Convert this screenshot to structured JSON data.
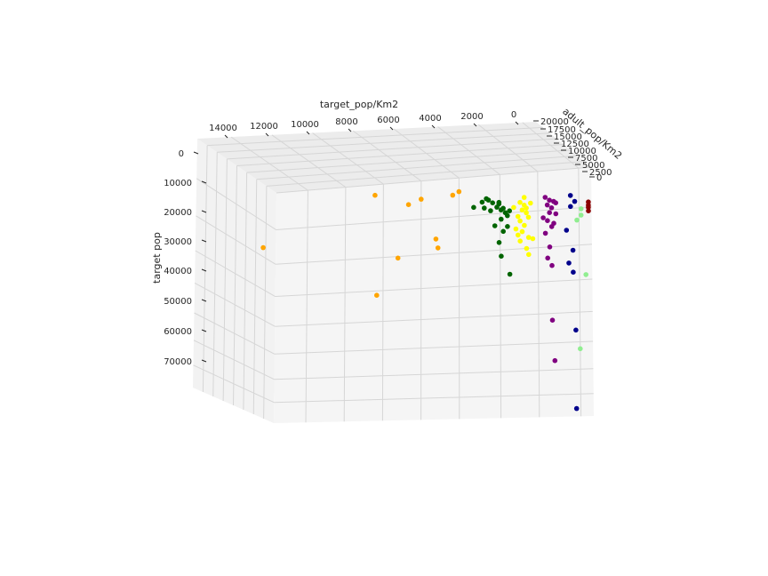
{
  "chart_data": {
    "type": "scatter",
    "projection": "3d",
    "title": "",
    "xlabel": "target_pop/Km2",
    "ylabel": "adult_pop/Km2",
    "zlabel": "target pop",
    "x_ticks": [
      "14000",
      "12000",
      "10000",
      "8000",
      "6000",
      "4000",
      "2000",
      "0"
    ],
    "y_ticks": [
      "20000",
      "17500",
      "15000",
      "12500",
      "10000",
      "7500",
      "5000",
      "2500",
      "0"
    ],
    "z_ticks": [
      "0",
      "10000",
      "20000",
      "30000",
      "40000",
      "50000",
      "60000",
      "70000"
    ],
    "grid": true,
    "clusters": [
      {
        "color": "#ffa500",
        "points": [
          {
            "x": 7500,
            "y": 3000,
            "z": 5000
          },
          {
            "x": 5900,
            "y": 3000,
            "z": 9000
          },
          {
            "x": 5300,
            "y": 3000,
            "z": 7500
          },
          {
            "x": 3800,
            "y": 3000,
            "z": 7000
          },
          {
            "x": 3500,
            "y": 3000,
            "z": 6000
          },
          {
            "x": 12800,
            "y": 3000,
            "z": 20000
          },
          {
            "x": 6400,
            "y": 3000,
            "z": 26500
          },
          {
            "x": 4600,
            "y": 3000,
            "z": 21000
          },
          {
            "x": 4500,
            "y": 3000,
            "z": 24000
          },
          {
            "x": 7400,
            "y": 3000,
            "z": 38500
          }
        ]
      },
      {
        "color": "#006400",
        "points": [
          {
            "x": 2800,
            "y": 3000,
            "z": 11500
          },
          {
            "x": 2400,
            "y": 3000,
            "z": 10000
          },
          {
            "x": 2200,
            "y": 3000,
            "z": 9000
          },
          {
            "x": 2100,
            "y": 3000,
            "z": 9500
          },
          {
            "x": 1900,
            "y": 3000,
            "z": 10500
          },
          {
            "x": 1700,
            "y": 3000,
            "z": 12000
          },
          {
            "x": 1600,
            "y": 3000,
            "z": 11000
          },
          {
            "x": 1500,
            "y": 3000,
            "z": 13000
          },
          {
            "x": 1400,
            "y": 3000,
            "z": 12500
          },
          {
            "x": 1300,
            "y": 3000,
            "z": 14000
          },
          {
            "x": 2000,
            "y": 3000,
            "z": 13000
          },
          {
            "x": 2300,
            "y": 3000,
            "z": 12000
          },
          {
            "x": 1200,
            "y": 3000,
            "z": 15000
          },
          {
            "x": 1500,
            "y": 3000,
            "z": 16000
          },
          {
            "x": 1800,
            "y": 3000,
            "z": 18000
          },
          {
            "x": 1200,
            "y": 3000,
            "z": 18500
          },
          {
            "x": 1400,
            "y": 3000,
            "z": 20000
          },
          {
            "x": 1600,
            "y": 3000,
            "z": 23500
          },
          {
            "x": 1500,
            "y": 3000,
            "z": 28000
          },
          {
            "x": 1100,
            "y": 3000,
            "z": 34000
          },
          {
            "x": 1600,
            "y": 3000,
            "z": 10500
          },
          {
            "x": 1100,
            "y": 3000,
            "z": 13500
          }
        ]
      },
      {
        "color": "#ffff00",
        "points": [
          {
            "x": 600,
            "y": 3000,
            "z": 11000
          },
          {
            "x": 400,
            "y": 3000,
            "z": 12000
          },
          {
            "x": 500,
            "y": 3000,
            "z": 13500
          },
          {
            "x": 300,
            "y": 3000,
            "z": 14500
          },
          {
            "x": 700,
            "y": 3000,
            "z": 15500
          },
          {
            "x": 200,
            "y": 3000,
            "z": 16000
          },
          {
            "x": 900,
            "y": 3000,
            "z": 12500
          },
          {
            "x": 600,
            "y": 3000,
            "z": 17000
          },
          {
            "x": 400,
            "y": 3000,
            "z": 18500
          },
          {
            "x": 800,
            "y": 3000,
            "z": 19500
          },
          {
            "x": 100,
            "y": 3000,
            "z": 11500
          },
          {
            "x": 500,
            "y": 3000,
            "z": 20500
          },
          {
            "x": 300,
            "y": 3000,
            "z": 13000
          },
          {
            "x": 700,
            "y": 3000,
            "z": 21500
          },
          {
            "x": 200,
            "y": 3000,
            "z": 22500
          },
          {
            "x": 400,
            "y": 3000,
            "z": 9500
          },
          {
            "x": 600,
            "y": 3000,
            "z": 23500
          },
          {
            "x": 300,
            "y": 3000,
            "z": 26000
          },
          {
            "x": 0,
            "y": 3000,
            "z": 23000
          },
          {
            "x": 200,
            "y": 3000,
            "z": 28000
          }
        ]
      },
      {
        "color": "#800080",
        "points": [
          {
            "x": -600,
            "y": 3000,
            "z": 10000
          },
          {
            "x": -800,
            "y": 3000,
            "z": 11000
          },
          {
            "x": -700,
            "y": 3000,
            "z": 12500
          },
          {
            "x": -1000,
            "y": 3000,
            "z": 11500
          },
          {
            "x": -900,
            "y": 3000,
            "z": 13500
          },
          {
            "x": -800,
            "y": 3000,
            "z": 15000
          },
          {
            "x": -500,
            "y": 3000,
            "z": 16500
          },
          {
            "x": -700,
            "y": 3000,
            "z": 17500
          },
          {
            "x": -1100,
            "y": 3000,
            "z": 15500
          },
          {
            "x": -900,
            "y": 3000,
            "z": 19500
          },
          {
            "x": -600,
            "y": 3000,
            "z": 21500
          },
          {
            "x": -800,
            "y": 3000,
            "z": 26000
          },
          {
            "x": -700,
            "y": 3000,
            "z": 29500
          },
          {
            "x": -900,
            "y": 3000,
            "z": 32000
          },
          {
            "x": -900,
            "y": 3000,
            "z": 49500
          },
          {
            "x": -1000,
            "y": 3000,
            "z": 62500
          },
          {
            "x": -1100,
            "y": 3000,
            "z": 12000
          },
          {
            "x": -1000,
            "y": 3000,
            "z": 18500
          }
        ]
      },
      {
        "color": "#00008b",
        "points": [
          {
            "x": -1800,
            "y": 3000,
            "z": 10000
          },
          {
            "x": -2000,
            "y": 3000,
            "z": 12000
          },
          {
            "x": -1800,
            "y": 3000,
            "z": 13500
          },
          {
            "x": -1600,
            "y": 3000,
            "z": 21000
          },
          {
            "x": -1900,
            "y": 3000,
            "z": 27500
          },
          {
            "x": -1700,
            "y": 3000,
            "z": 31500
          },
          {
            "x": -1900,
            "y": 3000,
            "z": 34500
          },
          {
            "x": -2000,
            "y": 3000,
            "z": 53000
          },
          {
            "x": -2000,
            "y": 3000,
            "z": 78000
          }
        ]
      },
      {
        "color": "#90ee90",
        "points": [
          {
            "x": -2300,
            "y": 3000,
            "z": 14500
          },
          {
            "x": -2300,
            "y": 3000,
            "z": 16500
          },
          {
            "x": -2100,
            "y": 3000,
            "z": 18000
          },
          {
            "x": -2500,
            "y": 3000,
            "z": 35500
          },
          {
            "x": -2200,
            "y": 3000,
            "z": 59000
          }
        ]
      },
      {
        "color": "#8b0000",
        "points": [
          {
            "x": -2650,
            "y": 3000,
            "z": 12500
          },
          {
            "x": -2650,
            "y": 3000,
            "z": 13500
          },
          {
            "x": -2650,
            "y": 3000,
            "z": 14200
          },
          {
            "x": -2650,
            "y": 3000,
            "z": 15300
          }
        ]
      }
    ]
  }
}
